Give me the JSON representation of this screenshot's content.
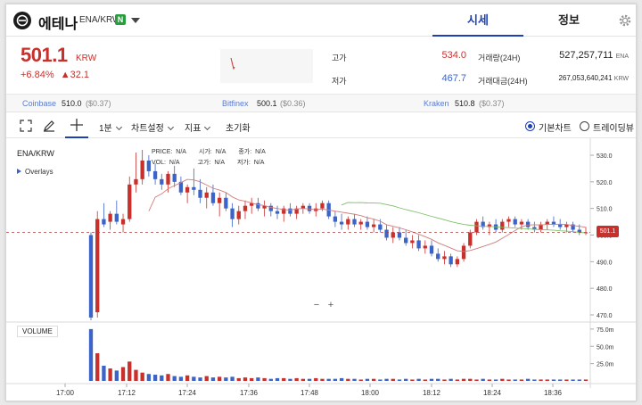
{
  "header": {
    "coin_name": "에테나",
    "pair": "ENA/KRW",
    "network_badge": "N",
    "tabs": [
      {
        "label": "시세"
      },
      {
        "label": "정보"
      }
    ]
  },
  "price": {
    "value": "501.1",
    "unit": "KRW",
    "change_pct": "+6.84%",
    "change_abs": "▲32.1"
  },
  "stats": {
    "high_label": "고가",
    "high": "534.0",
    "low_label": "저가",
    "low": "467.7",
    "vol_label": "거래량(24H)",
    "vol": "527,257,711",
    "vol_unit": "ENA",
    "amt_label": "거래대금(24H)",
    "amt": "267,053,640,241",
    "amt_unit": "KRW"
  },
  "exchanges": [
    {
      "name": "Coinbase",
      "price": "510.0",
      "diff": "($0.37)"
    },
    {
      "name": "Bitfinex",
      "price": "500.1",
      "diff": "($0.36)"
    },
    {
      "name": "Kraken",
      "price": "510.8",
      "diff": "($0.37)"
    }
  ],
  "toolbar": {
    "interval": "1분",
    "chart_settings": "차트설정",
    "indicators": "지표",
    "reset": "초기화",
    "basic_chart": "기본차트",
    "tradingview": "트레이딩뷰"
  },
  "chart": {
    "symbol": "ENA/KRW",
    "overlays": "Overlays",
    "legend_row1": [
      [
        "PRICE:",
        "N/A"
      ],
      [
        "시가:",
        "N/A"
      ],
      [
        "종가:",
        "N/A"
      ]
    ],
    "legend_row2": [
      [
        "VOL:",
        "N/A"
      ],
      [
        "고가:",
        "N/A"
      ],
      [
        "저가:",
        "N/A"
      ]
    ],
    "zoom_minus": "−",
    "zoom_plus": "+",
    "volume_label": "VOLUME",
    "last_price_tag": "501.1",
    "colors": {
      "up": "#c9302c",
      "down": "#3c63c8",
      "ma_short": "#d27b7b",
      "ma_long": "#7cc06a"
    }
  },
  "chart_data": {
    "type": "candlestick",
    "price_axis": {
      "min": 465,
      "max": 532,
      "ticks": [
        "530.0",
        "520.0",
        "510.0",
        "500.0",
        "490.0",
        "480.0",
        "470.0"
      ]
    },
    "volume_axis": {
      "ticks": [
        "75.0m",
        "50.0m",
        "25.0m"
      ]
    },
    "time_ticks": [
      "17:00",
      "17:12",
      "17:24",
      "17:36",
      "17:48",
      "18:00",
      "18:12",
      "18:24",
      "18:36"
    ],
    "candles_ohlc": [
      [
        500,
        501,
        468,
        469
      ],
      [
        471,
        509,
        469,
        506
      ],
      [
        506,
        512,
        503,
        504
      ],
      [
        505,
        509,
        502,
        508
      ],
      [
        508,
        513,
        504,
        505
      ],
      [
        504,
        508,
        501,
        506
      ],
      [
        506,
        522,
        505,
        519
      ],
      [
        519,
        531,
        516,
        521
      ],
      [
        521,
        532,
        519,
        528
      ],
      [
        528,
        530,
        522,
        524
      ],
      [
        524,
        527,
        519,
        521
      ],
      [
        521,
        523,
        517,
        519
      ],
      [
        519,
        524,
        516,
        523
      ],
      [
        523,
        526,
        518,
        520
      ],
      [
        520,
        522,
        515,
        516
      ],
      [
        516,
        519,
        512,
        518
      ],
      [
        518,
        525,
        515,
        517
      ],
      [
        517,
        521,
        512,
        514
      ],
      [
        514,
        518,
        510,
        516
      ],
      [
        516,
        519,
        511,
        512
      ],
      [
        512,
        516,
        507,
        514
      ],
      [
        514,
        516,
        509,
        510
      ],
      [
        510,
        512,
        503,
        506
      ],
      [
        506,
        511,
        504,
        509
      ],
      [
        509,
        513,
        506,
        511
      ],
      [
        511,
        514,
        508,
        512
      ],
      [
        512,
        514,
        509,
        510
      ],
      [
        510,
        513,
        507,
        511
      ],
      [
        511,
        512,
        507,
        509
      ],
      [
        509,
        511,
        506,
        508
      ],
      [
        508,
        511,
        505,
        510
      ],
      [
        510,
        512,
        507,
        508
      ],
      [
        508,
        511,
        506,
        510
      ],
      [
        510,
        512,
        508,
        511
      ],
      [
        511,
        512,
        508,
        509
      ],
      [
        509,
        512,
        507,
        510
      ],
      [
        510,
        513,
        509,
        512
      ],
      [
        512,
        513,
        506,
        507
      ],
      [
        507,
        509,
        503,
        505
      ],
      [
        505,
        508,
        502,
        504
      ],
      [
        504,
        507,
        502,
        506
      ],
      [
        506,
        508,
        503,
        504
      ],
      [
        504,
        506,
        502,
        505
      ],
      [
        505,
        507,
        502,
        503
      ],
      [
        503,
        506,
        501,
        504
      ],
      [
        504,
        506,
        501,
        502
      ],
      [
        502,
        504,
        498,
        499
      ],
      [
        499,
        503,
        497,
        501
      ],
      [
        501,
        503,
        498,
        499
      ],
      [
        499,
        502,
        496,
        497
      ],
      [
        497,
        500,
        495,
        498
      ],
      [
        498,
        500,
        494,
        495
      ],
      [
        495,
        498,
        493,
        496
      ],
      [
        496,
        498,
        492,
        493
      ],
      [
        493,
        495,
        490,
        491
      ],
      [
        491,
        494,
        489,
        492
      ],
      [
        492,
        493,
        488,
        489
      ],
      [
        489,
        492,
        488,
        491
      ],
      [
        491,
        497,
        490,
        496
      ],
      [
        496,
        502,
        495,
        501
      ],
      [
        501,
        506,
        500,
        505
      ],
      [
        505,
        507,
        502,
        503
      ],
      [
        503,
        505,
        500,
        504
      ],
      [
        504,
        506,
        501,
        502
      ],
      [
        502,
        506,
        501,
        505
      ],
      [
        505,
        507,
        503,
        506
      ],
      [
        506,
        507,
        503,
        504
      ],
      [
        504,
        506,
        502,
        505
      ],
      [
        505,
        506,
        502,
        503
      ],
      [
        503,
        505,
        501,
        502
      ],
      [
        502,
        505,
        501,
        504
      ],
      [
        504,
        506,
        502,
        505
      ],
      [
        505,
        507,
        503,
        504
      ],
      [
        504,
        506,
        502,
        503
      ],
      [
        503,
        505,
        501,
        504
      ],
      [
        504,
        505,
        501,
        502
      ],
      [
        502,
        504,
        500,
        501
      ],
      [
        501,
        503,
        500,
        501
      ]
    ],
    "volume_m": [
      75,
      40,
      22,
      18,
      15,
      20,
      28,
      16,
      12,
      10,
      9,
      8,
      10,
      7,
      6,
      8,
      6,
      5,
      7,
      5,
      6,
      5,
      6,
      4,
      5,
      4,
      5,
      4,
      3,
      4,
      4,
      3,
      4,
      3,
      3,
      4,
      3,
      3,
      3,
      4,
      3,
      3,
      2,
      3,
      3,
      2,
      3,
      3,
      2,
      3,
      2,
      3,
      2,
      3,
      3,
      2,
      3,
      2,
      3,
      3,
      2,
      3,
      2,
      2,
      3,
      2,
      2,
      2,
      3,
      2,
      2,
      2,
      2,
      2,
      2,
      2,
      2,
      2
    ]
  }
}
